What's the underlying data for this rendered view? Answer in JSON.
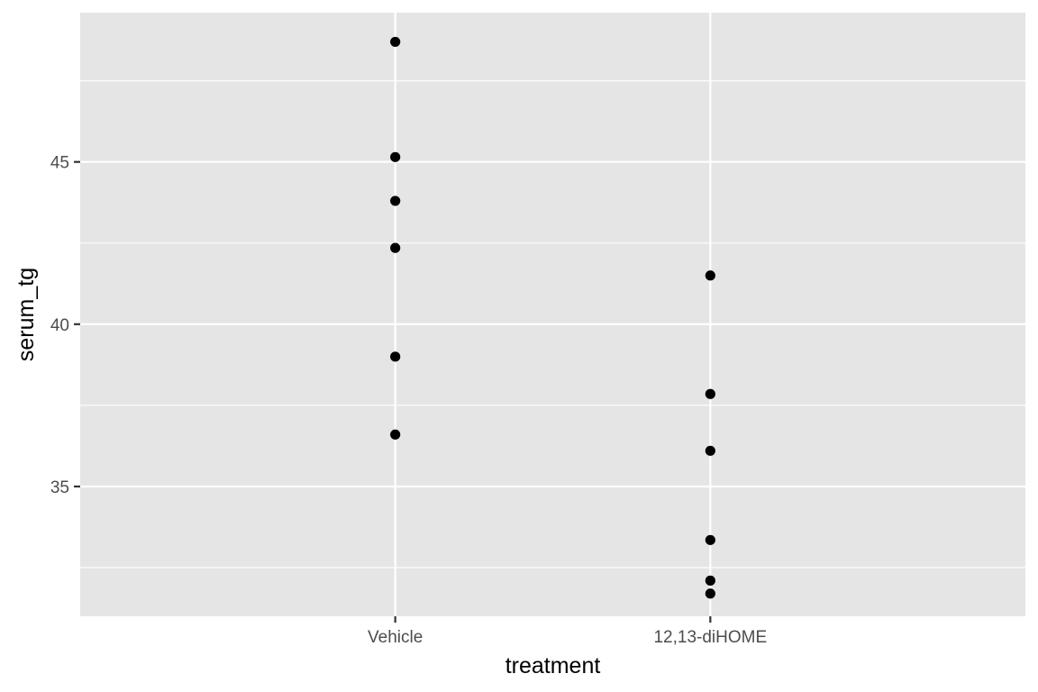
{
  "chart_data": {
    "type": "scatter",
    "title": "",
    "xlabel": "treatment",
    "ylabel": "serum_tg",
    "categories": [
      "Vehicle",
      "12,13-diHOME"
    ],
    "series": [
      {
        "values": [
          [
            48.7,
            45.15,
            43.8,
            42.35,
            39.0,
            36.6
          ],
          [
            41.5,
            37.85,
            36.1,
            33.35,
            32.1,
            31.7
          ]
        ]
      }
    ],
    "ylim": [
      31.0,
      49.6
    ],
    "yticks": [
      35,
      40,
      45
    ],
    "ytick_labels": [
      "35",
      "40",
      "45"
    ],
    "grid": true,
    "colors": {
      "panel_background": "#e5e5e5",
      "grid": "#ffffff",
      "point": "#000000",
      "tick_label": "#4d4d4d",
      "axis_title": "#000000"
    }
  }
}
